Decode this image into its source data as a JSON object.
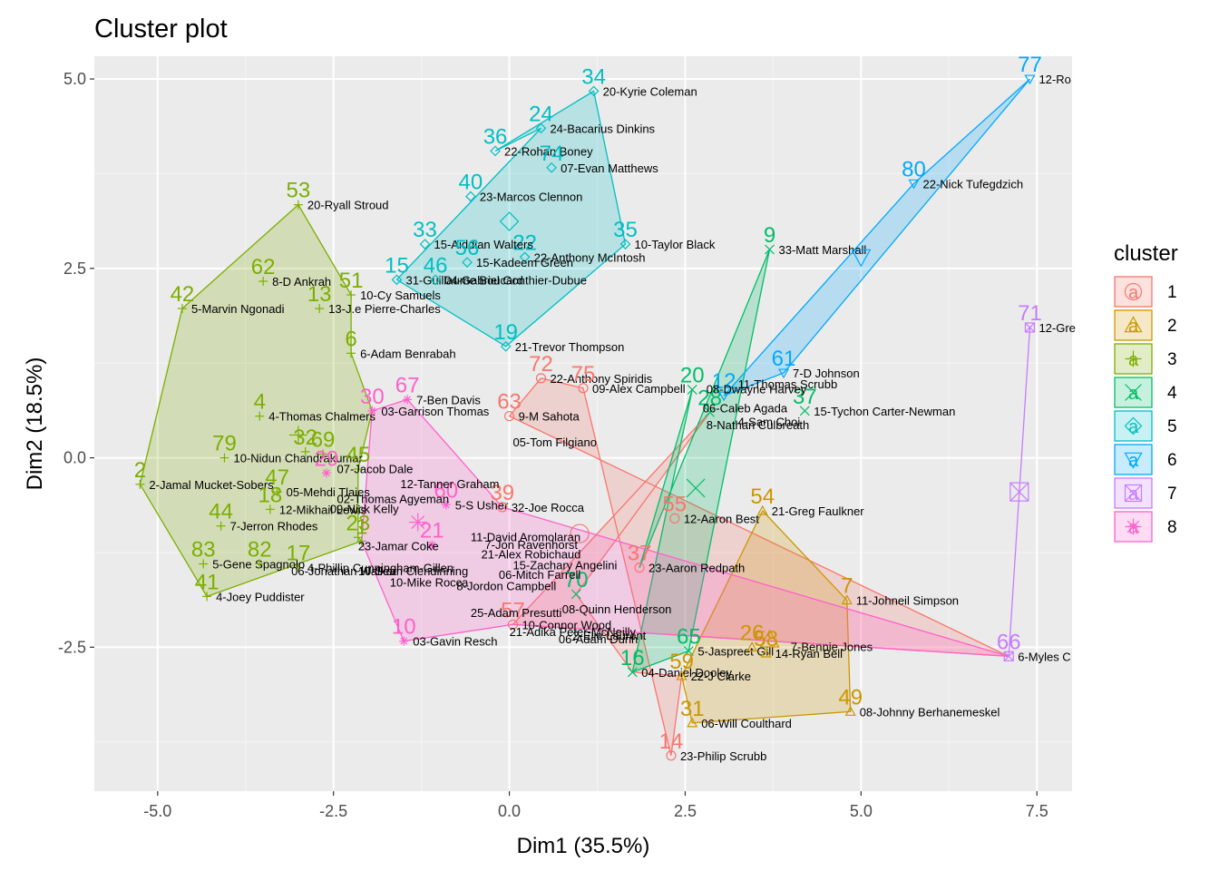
{
  "chart_data": {
    "type": "scatter",
    "title": "Cluster plot",
    "xlabel": "Dim1 (35.5%)",
    "ylabel": "Dim2 (18.5%)",
    "xlim": [
      -5.9,
      8.0
    ],
    "ylim": [
      -4.4,
      5.3
    ],
    "xticks": [
      -5.0,
      -2.5,
      0.0,
      2.5,
      5.0,
      7.5
    ],
    "yticks": [
      -2.5,
      0.0,
      2.5,
      5.0
    ],
    "xtick_labels": [
      "-5.0",
      "-2.5",
      "0.0",
      "2.5",
      "5.0",
      "7.5"
    ],
    "ytick_labels": [
      "-2.5",
      "0.0",
      "2.5",
      "5.0"
    ],
    "legend": {
      "title": "cluster",
      "position": "right",
      "entries": [
        "1",
        "2",
        "3",
        "4",
        "5",
        "6",
        "7",
        "8"
      ]
    },
    "colors": {
      "1": "#F8766D",
      "2": "#CD9600",
      "3": "#7CAE00",
      "4": "#00BE67",
      "5": "#00BFC4",
      "6": "#00A9FF",
      "7": "#C77CFF",
      "8": "#FF61CC"
    },
    "hull_order": {
      "1": [
        14,
        75,
        72,
        63,
        66,
        57,
        28,
        70,
        16,
        59
      ],
      "2": [
        54,
        7,
        49,
        31,
        59
      ],
      "3": [
        53,
        51,
        6,
        30,
        45,
        23,
        1,
        41,
        2,
        42
      ],
      "4": [
        9,
        37,
        20,
        16,
        65
      ],
      "5": [
        34,
        35,
        19,
        15,
        24,
        36
      ],
      "6": [
        77,
        61,
        12,
        80
      ],
      "7": [
        71,
        66
      ],
      "8": [
        67,
        39,
        66,
        57,
        10,
        1,
        30
      ]
    },
    "points": [
      {
        "id": "34",
        "name": "20-Kyrie Coleman",
        "cluster": "5",
        "x": 1.2,
        "y": 4.84
      },
      {
        "id": "24",
        "name": "24-Bacarius Dinkins",
        "cluster": "5",
        "x": 0.45,
        "y": 4.35
      },
      {
        "id": "36",
        "name": "22-Rohan Boney",
        "cluster": "5",
        "x": -0.2,
        "y": 4.05
      },
      {
        "id": "74",
        "name": "07-Evan Matthews",
        "cluster": "5",
        "x": 0.6,
        "y": 3.83
      },
      {
        "id": "40",
        "name": "23-Marcos Clennon",
        "cluster": "5",
        "x": -0.55,
        "y": 3.45
      },
      {
        "id": "22",
        "name": "22-Anthony McIntosh",
        "cluster": "5",
        "x": 0.22,
        "y": 2.65
      },
      {
        "id": "33",
        "name": "15-Aiddian Walters",
        "cluster": "5",
        "x": -1.2,
        "y": 2.82
      },
      {
        "id": "35",
        "name": "10-Taylor Black",
        "cluster": "5",
        "x": 1.65,
        "y": 2.82
      },
      {
        "id": "56",
        "name": "15-Kadeem Green",
        "cluster": "5",
        "x": -0.6,
        "y": 2.58
      },
      {
        "id": "15",
        "name": "31-Guillaume Boucard",
        "cluster": "5",
        "x": -1.6,
        "y": 2.35
      },
      {
        "id": "46",
        "name": "04-Gabriel Gonthier-Dubue",
        "cluster": "5",
        "x": -1.05,
        "y": 2.35
      },
      {
        "id": "19",
        "name": "21-Trevor Thompson",
        "cluster": "5",
        "x": -0.05,
        "y": 1.47
      },
      {
        "id": "53",
        "name": "20-Ryall Stroud",
        "cluster": "3",
        "x": -3.0,
        "y": 3.34
      },
      {
        "id": "62",
        "name": "8-D Ankrah",
        "cluster": "3",
        "x": -3.5,
        "y": 2.33
      },
      {
        "id": "51",
        "name": "10-Cy Samuels",
        "cluster": "3",
        "x": -2.25,
        "y": 2.15
      },
      {
        "id": "42",
        "name": "5-Marvin Ngonadi",
        "cluster": "3",
        "x": -4.65,
        "y": 1.97
      },
      {
        "id": "13",
        "name": "13-J.e Pierre-Charles",
        "cluster": "3",
        "x": -2.7,
        "y": 1.97
      },
      {
        "id": "6",
        "name": "6-Adam Benrabah",
        "cluster": "3",
        "x": -2.25,
        "y": 1.38
      },
      {
        "id": "4",
        "name": "4-Thomas Chalmers",
        "cluster": "3",
        "x": -3.55,
        "y": 0.55
      },
      {
        "id": "79",
        "name": "10-Nidun Chandrakumar",
        "cluster": "3",
        "x": -4.05,
        "y": 0.0
      },
      {
        "id": "32",
        "name": "",
        "cluster": "3",
        "x": -2.9,
        "y": 0.08
      },
      {
        "id": "69",
        "name": "",
        "cluster": "3",
        "x": -2.65,
        "y": 0.05
      },
      {
        "id": "2",
        "name": "2-Jamal Mucket-Sobers",
        "cluster": "3",
        "x": -5.25,
        "y": -0.35
      },
      {
        "id": "47",
        "name": "05-Mehdi Tlaies",
        "cluster": "3",
        "x": -3.3,
        "y": -0.45
      },
      {
        "id": "18",
        "name": "12-Mikhail Lewis",
        "cluster": "3",
        "x": -3.4,
        "y": -0.68
      },
      {
        "id": "44",
        "name": "7-Jerron Rhodes",
        "cluster": "3",
        "x": -4.1,
        "y": -0.9
      },
      {
        "id": "23",
        "name": "",
        "cluster": "3",
        "x": -2.15,
        "y": -1.05
      },
      {
        "id": "83",
        "name": "5-Gene Spagnolo",
        "cluster": "3",
        "x": -4.35,
        "y": -1.4
      },
      {
        "id": "82",
        "name": "",
        "cluster": "3",
        "x": -3.55,
        "y": -1.4
      },
      {
        "id": "17",
        "name": "4-Phillip Cunningham-Gillen",
        "cluster": "3",
        "x": -3.0,
        "y": -1.45
      },
      {
        "id": "41",
        "name": "4-Joey Puddister",
        "cluster": "3",
        "x": -4.3,
        "y": -1.83
      },
      {
        "id": "45",
        "name": "",
        "cluster": "3",
        "x": -2.15,
        "y": -0.15
      },
      {
        "id": "1",
        "name": "",
        "cluster": "3",
        "x": -2.1,
        "y": -1.1
      },
      {
        "id": "30",
        "name": "03-Garrison Thomas",
        "cluster": "8",
        "x": -1.95,
        "y": 0.62
      },
      {
        "id": "67",
        "name": "7-Ben Davis",
        "cluster": "8",
        "x": -1.45,
        "y": 0.77
      },
      {
        "id": "29",
        "name": "",
        "cluster": "8",
        "x": -2.6,
        "y": -0.2
      },
      {
        "id": "60",
        "name": "5-S Usher",
        "cluster": "8",
        "x": -0.9,
        "y": -0.62
      },
      {
        "id": "21",
        "name": "",
        "cluster": "8",
        "x": -1.1,
        "y": -1.15
      },
      {
        "id": "10",
        "name": "03-Gavin Resch",
        "cluster": "8",
        "x": -1.5,
        "y": -2.42
      },
      {
        "id": "63",
        "name": "9-M Sahota",
        "cluster": "1",
        "x": 0.0,
        "y": 0.55
      },
      {
        "id": "72",
        "name": "22-Anthony Spiridis",
        "cluster": "1",
        "x": 0.45,
        "y": 1.05
      },
      {
        "id": "75",
        "name": "09-Alex Campbell",
        "cluster": "1",
        "x": 1.05,
        "y": 0.92
      },
      {
        "id": "39",
        "name": "32-Joe Rocca",
        "cluster": "1",
        "x": -0.1,
        "y": -0.65
      },
      {
        "id": "55",
        "name": "12-Aaron Best",
        "cluster": "1",
        "x": 2.35,
        "y": -0.8
      },
      {
        "id": "37",
        "name": "23-Aaron Redpath",
        "cluster": "1",
        "x": 1.85,
        "y": -1.45
      },
      {
        "id": "14",
        "name": "23-Philip Scrubb",
        "cluster": "1",
        "x": 2.3,
        "y": -3.93
      },
      {
        "id": "57",
        "name": "10-Connor Wood",
        "cluster": "1",
        "x": 0.05,
        "y": -2.2
      },
      {
        "id": "9",
        "name": "33-Matt Marshall",
        "cluster": "4",
        "x": 3.7,
        "y": 2.75
      },
      {
        "id": "20",
        "name": "",
        "cluster": "4",
        "x": 2.6,
        "y": 0.9
      },
      {
        "id": "37b",
        "name": "15-Tychon Carter-Newman",
        "cluster": "4",
        "x": 4.2,
        "y": 0.62
      },
      {
        "id": "28",
        "name": "",
        "cluster": "4",
        "x": 2.85,
        "y": 0.6
      },
      {
        "id": "70",
        "name": "",
        "cluster": "4",
        "x": 0.95,
        "y": -1.8
      },
      {
        "id": "16",
        "name": "04-Daniel Dooley",
        "cluster": "4",
        "x": 1.75,
        "y": -2.83
      },
      {
        "id": "65",
        "name": "5-Jaspreet Gill",
        "cluster": "4",
        "x": 2.55,
        "y": -2.55
      },
      {
        "id": "54",
        "name": "21-Greg Faulkner",
        "cluster": "2",
        "x": 3.6,
        "y": -0.7
      },
      {
        "id": "7",
        "name": "11-Johneil Simpson",
        "cluster": "2",
        "x": 4.8,
        "y": -1.88
      },
      {
        "id": "26",
        "name": "",
        "cluster": "2",
        "x": 3.45,
        "y": -2.5
      },
      {
        "id": "58",
        "name": "14-Ryan Bell",
        "cluster": "2",
        "x": 3.65,
        "y": -2.58
      },
      {
        "id": "49",
        "name": "08-Johnny Berhanemeskel",
        "cluster": "2",
        "x": 4.85,
        "y": -3.35
      },
      {
        "id": "59",
        "name": "22-J Clarke",
        "cluster": "2",
        "x": 2.45,
        "y": -2.88
      },
      {
        "id": "31",
        "name": "06-Will Coulthard",
        "cluster": "2",
        "x": 2.6,
        "y": -3.5
      },
      {
        "id": "77",
        "name": "12-Ro",
        "cluster": "6",
        "x": 7.4,
        "y": 5.0
      },
      {
        "id": "80",
        "name": "22-Nick Tufegdzich",
        "cluster": "6",
        "x": 5.75,
        "y": 3.62
      },
      {
        "id": "61",
        "name": "7-D Johnson",
        "cluster": "6",
        "x": 3.9,
        "y": 1.12
      },
      {
        "id": "12",
        "name": "",
        "cluster": "6",
        "x": 3.05,
        "y": 0.82
      },
      {
        "id": "71",
        "name": "12-Gre",
        "cluster": "7",
        "x": 7.4,
        "y": 1.72
      },
      {
        "id": "66",
        "name": "6-Myles C",
        "cluster": "7",
        "x": 7.1,
        "y": -2.62
      }
    ],
    "centroids": [
      {
        "cluster": "1",
        "x": 1.0,
        "y": -1.0
      },
      {
        "cluster": "2",
        "x": 3.7,
        "y": -2.4
      },
      {
        "cluster": "3",
        "x": -3.0,
        "y": 0.3
      },
      {
        "cluster": "4",
        "x": 2.65,
        "y": -0.4
      },
      {
        "cluster": "5",
        "x": 0.0,
        "y": 3.12
      },
      {
        "cluster": "6",
        "x": 5.0,
        "y": 2.65
      },
      {
        "cluster": "7",
        "x": 7.25,
        "y": -0.45
      },
      {
        "cluster": "8",
        "x": -1.3,
        "y": -0.85
      }
    ],
    "annotations": [
      "08-Dwayne Harvey",
      "11-Thomas Scrubb",
      "06-Caleb Agada",
      "8-Nathan Culbreath",
      "4-Sam Choi",
      "05-Tom Filgiano",
      "12-Tanner Graham",
      "07-Jacob Dale",
      "02-Thomas Agyeman",
      "09-Nick Kelly",
      "10-Sean Clendinning",
      "06-Mitch Farrell",
      "10-Mike Rocca",
      "8-Jordon Campbell",
      "25-Adam Presutti",
      "21-Adika Peter-McNeilly",
      "08-Quinn Henderson",
      "11-David Aromolaran",
      "7-Jon Ravenhorst",
      "21-Alex Robichaud",
      "15-Zachary Angelini",
      "23-Jamar Coke",
      "06-Jonathan Walker",
      "2-Elie Laurent",
      "7-Bennie Jones",
      "06-Adam Dunn"
    ]
  }
}
